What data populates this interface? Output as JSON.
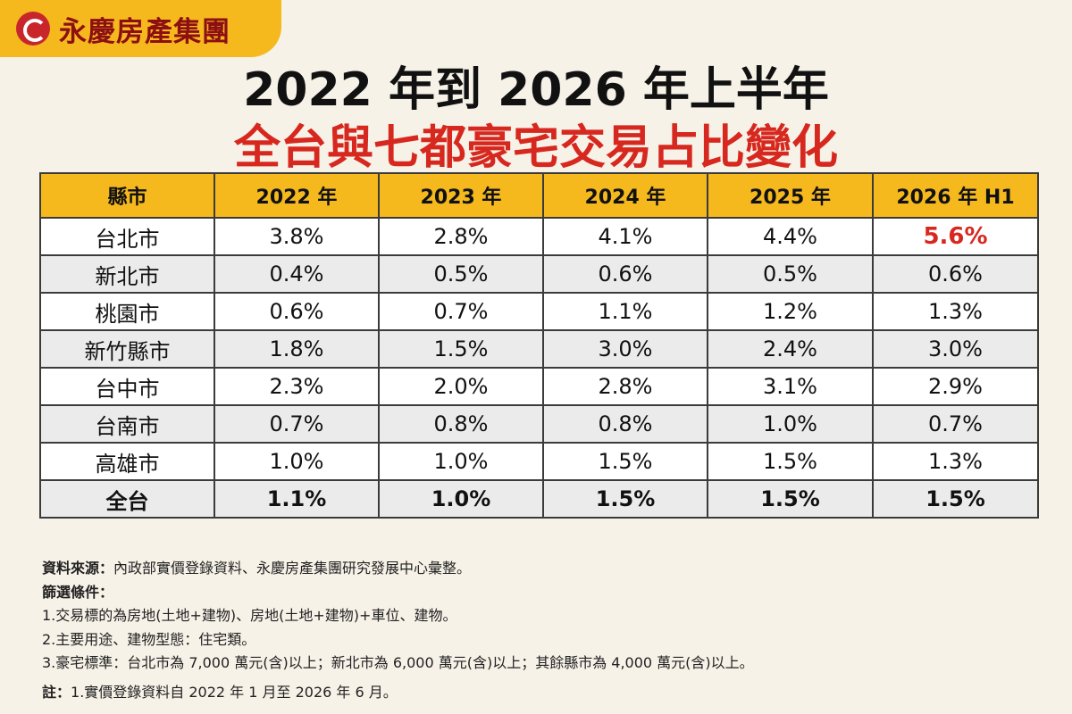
{
  "logo": {
    "text": "永慶房產集團"
  },
  "header": {
    "title_line1": "2022 年到 2026 年上半年",
    "title_line2": "全台與七都豪宅交易占比變化"
  },
  "chart_data": {
    "type": "table",
    "columns": [
      "縣市",
      "2022 年",
      "2023 年",
      "2024 年",
      "2025 年",
      "2026 年 H1"
    ],
    "rows": [
      {
        "city": "台北市",
        "values": [
          "3.8%",
          "2.8%",
          "4.1%",
          "4.4%",
          "5.6%"
        ]
      },
      {
        "city": "新北市",
        "values": [
          "0.4%",
          "0.5%",
          "0.6%",
          "0.5%",
          "0.6%"
        ]
      },
      {
        "city": "桃園市",
        "values": [
          "0.6%",
          "0.7%",
          "1.1%",
          "1.2%",
          "1.3%"
        ]
      },
      {
        "city": "新竹縣市",
        "values": [
          "1.8%",
          "1.5%",
          "3.0%",
          "2.4%",
          "3.0%"
        ]
      },
      {
        "city": "台中市",
        "values": [
          "2.3%",
          "2.0%",
          "2.8%",
          "3.1%",
          "2.9%"
        ]
      },
      {
        "city": "台南市",
        "values": [
          "0.7%",
          "0.8%",
          "0.8%",
          "1.0%",
          "0.7%"
        ]
      },
      {
        "city": "高雄市",
        "values": [
          "1.0%",
          "1.0%",
          "1.5%",
          "1.5%",
          "1.3%"
        ]
      },
      {
        "city": "全台",
        "values": [
          "1.1%",
          "1.0%",
          "1.5%",
          "1.5%",
          "1.5%"
        ]
      }
    ],
    "highlight_color": "#d7281f",
    "header_color": "#f5b91e"
  },
  "notes": {
    "source_label": "資料來源：",
    "source_text": "內政部實價登錄資料、永慶房產集團研究發展中心彙整。",
    "filter_label": "篩選條件：",
    "filter_1": "1.交易標的為房地(土地+建物)、房地(土地+建物)+車位、建物。",
    "filter_2": "2.主要用途、建物型態：住宅類。",
    "filter_3": "3.豪宅標準：台北市為 7,000 萬元(含)以上；新北市為 6,000 萬元(含)以上；其餘縣市為 4,000 萬元(含)以上。",
    "note_label": "註：",
    "note_text": "1.實價登錄資料自 2022 年 1 月至 2026 年 6 月。"
  }
}
